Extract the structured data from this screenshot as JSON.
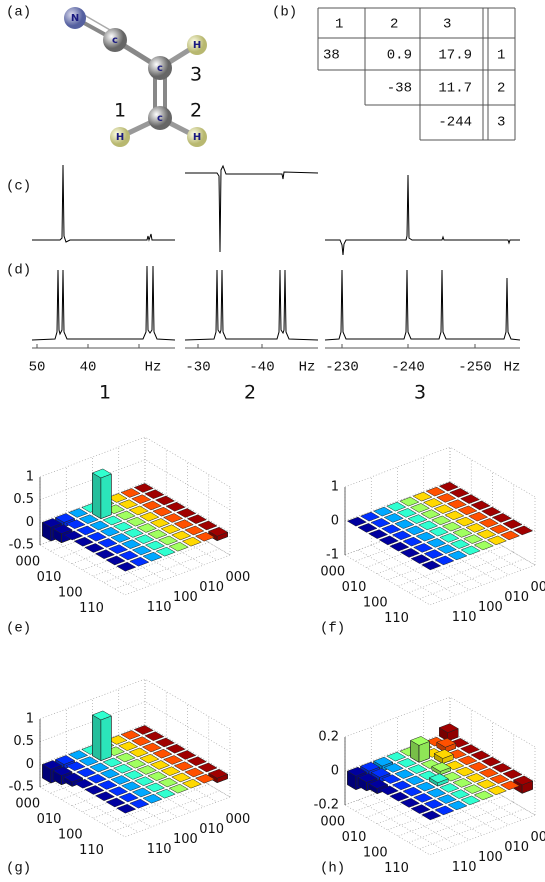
{
  "figure": {
    "panel_labels": [
      "(a)",
      "(b)",
      "(c)",
      "(d)",
      "(e)",
      "(f)",
      "(g)",
      "(h)"
    ],
    "molecule": {
      "atoms": [
        "N",
        "c",
        "c",
        "c",
        "H",
        "H",
        "H"
      ],
      "proton_labels": [
        "1",
        "2",
        "3"
      ]
    },
    "coupling_table": {
      "header": [
        "1",
        "2",
        "3"
      ],
      "rows": [
        [
          "38",
          "0.9",
          "17.9",
          "1"
        ],
        [
          "-38",
          "11.7",
          "2"
        ],
        [
          "-244",
          "3"
        ]
      ]
    },
    "spectra": {
      "x_ticks": [
        [
          "50",
          "40",
          "Hz"
        ],
        [
          "-30",
          "-40",
          "Hz"
        ],
        [
          "-230",
          "-240",
          "-250",
          "Hz"
        ]
      ],
      "spin_labels": [
        "1",
        "2",
        "3"
      ]
    },
    "density_matrices": [
      {
        "z_ticks": [
          1,
          0.5,
          0,
          -0.5
        ],
        "axis_labels": [
          "000",
          "010",
          "100",
          "110"
        ],
        "values": [
          [
            0,
            0,
            0,
            0,
            0,
            0,
            0,
            -0.1
          ],
          [
            0,
            0,
            0,
            0,
            0,
            0,
            0,
            0
          ],
          [
            0,
            0,
            0,
            0,
            0,
            0,
            0,
            0
          ],
          [
            0,
            0,
            0,
            0,
            0,
            0,
            0,
            0
          ],
          [
            0,
            0.9,
            0,
            0,
            0,
            0,
            0,
            0
          ],
          [
            0,
            0,
            0,
            0,
            0,
            0,
            0,
            0
          ],
          [
            -0.1,
            0,
            0,
            0,
            0,
            0,
            0,
            0
          ],
          [
            -0.3,
            -0.2,
            0,
            0,
            0,
            0,
            0,
            0
          ]
        ]
      },
      {
        "z_ticks": [
          1,
          0,
          -1
        ],
        "axis_labels": [
          "000",
          "010",
          "100",
          "110"
        ],
        "values": [
          [
            0,
            0,
            0,
            0,
            0,
            0,
            0,
            0
          ],
          [
            0,
            0,
            0,
            0,
            0,
            0,
            0,
            0
          ],
          [
            0,
            0,
            0,
            0,
            0,
            0,
            0,
            0
          ],
          [
            0,
            0,
            0,
            0,
            0,
            0,
            0,
            0
          ],
          [
            0,
            0,
            0,
            0,
            0,
            0,
            0,
            0
          ],
          [
            0,
            0,
            0,
            0,
            0,
            0,
            0,
            0
          ],
          [
            0,
            0,
            0,
            0,
            0,
            0,
            0,
            0
          ],
          [
            0,
            0,
            0,
            0,
            0,
            0,
            0,
            0
          ]
        ]
      },
      {
        "z_ticks": [
          1,
          0.5,
          0,
          -0.5
        ],
        "axis_labels": [
          "000",
          "010",
          "100",
          "110"
        ],
        "values": [
          [
            0,
            0,
            0,
            0,
            0,
            0,
            0,
            -0.1
          ],
          [
            0,
            0,
            0,
            0,
            0,
            0,
            0,
            0
          ],
          [
            0,
            0,
            0,
            0,
            0,
            0,
            0,
            0
          ],
          [
            0,
            0,
            0,
            0,
            0,
            0,
            0,
            0
          ],
          [
            0,
            0.9,
            0,
            0,
            0,
            0,
            0,
            0
          ],
          [
            0,
            0,
            0,
            0,
            0,
            0,
            0,
            0
          ],
          [
            -0.1,
            0,
            0,
            0,
            0,
            0,
            0,
            0
          ],
          [
            -0.3,
            -0.2,
            -0.1,
            0,
            0,
            0,
            0,
            0
          ]
        ]
      },
      {
        "z_ticks": [
          0.2,
          0,
          -0.2
        ],
        "axis_labels": [
          "000",
          "010",
          "100",
          "110"
        ],
        "values": [
          [
            0.05,
            0,
            0,
            0,
            0,
            0,
            0,
            -0.05
          ],
          [
            0,
            0.03,
            0,
            0,
            0,
            0,
            0,
            0
          ],
          [
            0,
            0,
            0.03,
            0,
            0,
            0,
            0,
            0
          ],
          [
            0,
            0.1,
            0,
            0.02,
            0,
            0,
            0,
            0
          ],
          [
            0,
            0,
            0,
            0,
            0.02,
            0,
            0,
            0
          ],
          [
            -0.03,
            0,
            0,
            0,
            0,
            0,
            0,
            0
          ],
          [
            -0.05,
            -0.03,
            0,
            0,
            0,
            0,
            0,
            0
          ],
          [
            -0.08,
            -0.05,
            -0.03,
            0,
            0,
            0,
            0,
            0
          ]
        ]
      }
    ]
  }
}
